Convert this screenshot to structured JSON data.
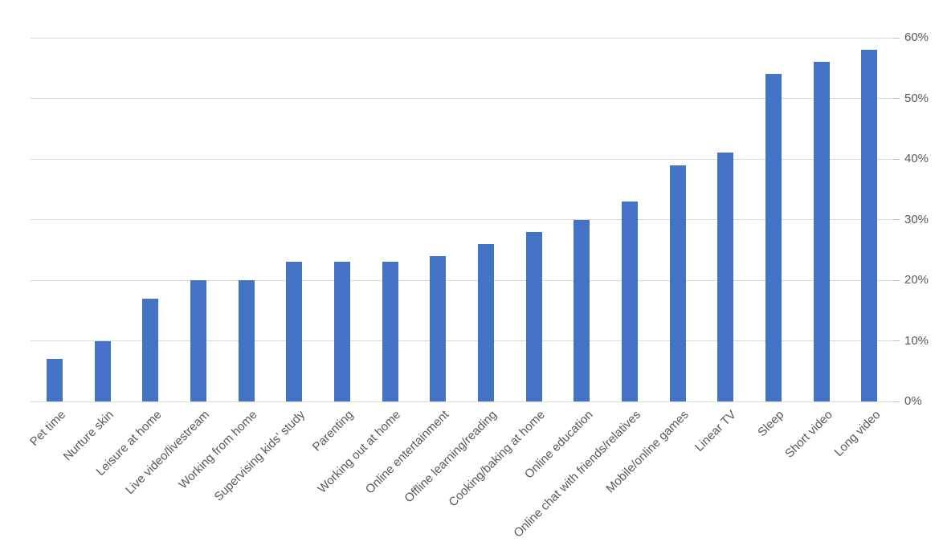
{
  "chart_data": {
    "type": "bar",
    "title": "",
    "xlabel": "",
    "ylabel": "",
    "categories": [
      "Pet time",
      "Nurture skin",
      "Leisure at home",
      "Live video/livestream",
      "Working from home",
      "Supervising kids' study",
      "Parenting",
      "Working out at home",
      "Online entertainment",
      "Offline learning/reading",
      "Cooking/baking at home",
      "Online education",
      "Online chat with friends/relatives",
      "Mobile/online games",
      "Linear TV",
      "Sleep",
      "Short video",
      "Long video"
    ],
    "values": [
      7,
      10,
      17,
      20,
      20,
      23,
      23,
      23,
      24,
      26,
      28,
      30,
      33,
      39,
      41,
      54,
      56,
      58
    ],
    "y_ticks": [
      "0%",
      "10%",
      "20%",
      "30%",
      "40%",
      "50%",
      "60%"
    ],
    "y_tick_values": [
      0,
      10,
      20,
      30,
      40,
      50,
      60
    ],
    "ylim": [
      0,
      60
    ],
    "y_axis_side": "right",
    "grid": true,
    "legend": "none",
    "bar_color": "#4472C4",
    "gridline_color": "#D9D9D9",
    "tick_color": "#BFBFBF",
    "text_color": "#595959"
  }
}
